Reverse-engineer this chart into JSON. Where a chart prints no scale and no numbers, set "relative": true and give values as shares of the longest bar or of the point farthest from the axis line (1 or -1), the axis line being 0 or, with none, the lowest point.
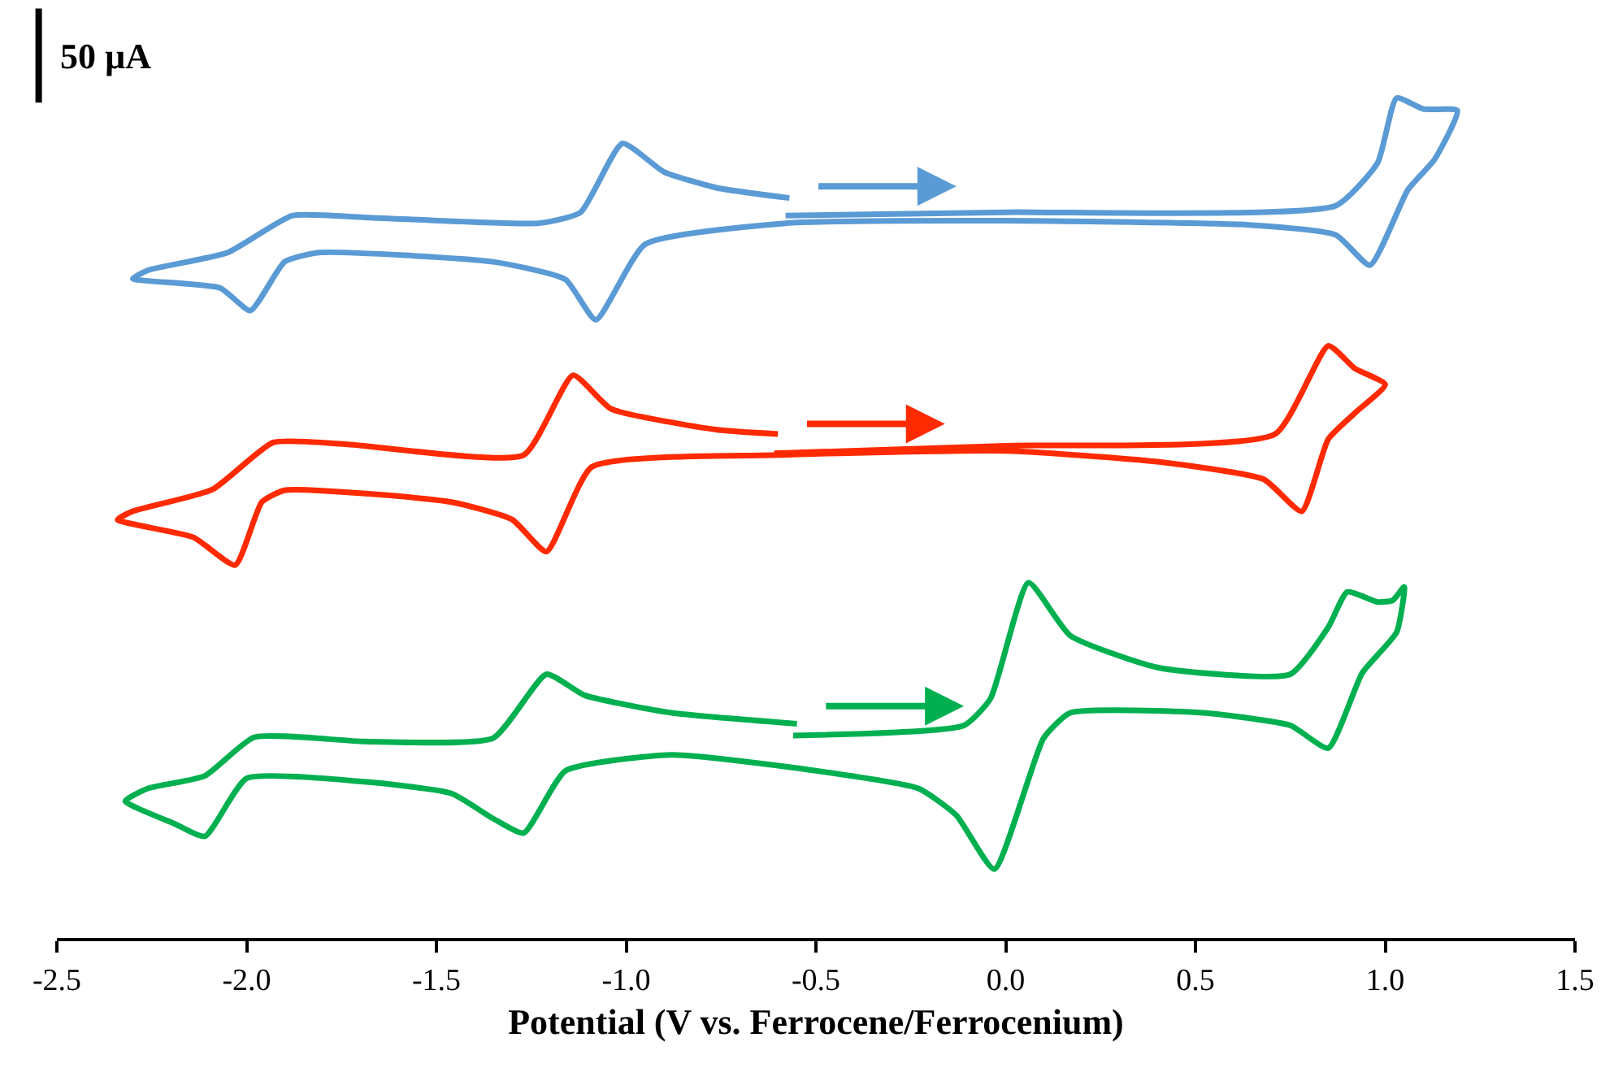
{
  "chart_data": {
    "type": "line",
    "relative": true,
    "xlabel": "Potential (V vs. Ferrocene/Ferrocenium)",
    "annotations": [
      "50 µA"
    ],
    "xlim": [
      -2.5,
      1.5
    ],
    "xticks": [
      -2.5,
      {
        "value": -2,
        "label": "-2.0"
      },
      -1.5,
      {
        "value": -1,
        "label": "-1.0"
      },
      -0.5,
      {
        "value": 0,
        "label": "0.0"
      },
      0.5,
      {
        "value": 1,
        "label": "1.0"
      },
      1.5
    ],
    "marker": "none",
    "line_style": "solid",
    "series": [
      {
        "color": "#5b9bd5",
        "x": [
          -0.58,
          0.0,
          0.87,
          0.98,
          1.03,
          1.1,
          1.19,
          1.13,
          1.06,
          0.96,
          0.87,
          0.64,
          0.0,
          -0.58,
          -0.95,
          -1.08,
          -1.16,
          -1.35,
          -1.81,
          -1.9,
          -1.99,
          -2.07,
          -2.3,
          -2.26,
          -2.05,
          -1.88,
          -1.69,
          -1.23,
          -1.12,
          -1.01,
          -0.9,
          -0.76,
          -0.57
        ],
        "values": [
          0.86,
          0.864,
          0.872,
          0.923,
          1.0,
          0.987,
          0.985,
          0.927,
          0.891,
          0.801,
          0.837,
          0.849,
          0.854,
          0.851,
          0.826,
          0.736,
          0.784,
          0.805,
          0.816,
          0.805,
          0.747,
          0.774,
          0.785,
          0.795,
          0.816,
          0.86,
          0.858,
          0.851,
          0.864,
          0.946,
          0.912,
          0.893,
          0.881
        ]
      },
      {
        "color": "#ff2a00",
        "x": [
          -0.61,
          0.0,
          0.71,
          0.85,
          0.92,
          1.0,
          0.92,
          0.85,
          0.78,
          0.68,
          0.4,
          0.0,
          -0.6,
          -1.09,
          -1.21,
          -1.3,
          -1.46,
          -1.9,
          -1.96,
          -2.03,
          -2.14,
          -2.34,
          -2.3,
          -2.09,
          -1.93,
          -1.74,
          -1.27,
          -1.14,
          -1.04,
          -0.76,
          -0.6
        ],
        "values": [
          0.577,
          0.586,
          0.6,
          0.705,
          0.678,
          0.659,
          0.625,
          0.594,
          0.508,
          0.546,
          0.567,
          0.58,
          0.575,
          0.561,
          0.46,
          0.498,
          0.519,
          0.533,
          0.519,
          0.444,
          0.477,
          0.498,
          0.508,
          0.534,
          0.59,
          0.588,
          0.575,
          0.67,
          0.63,
          0.605,
          0.6
        ]
      },
      {
        "color": "#00b050",
        "x": [
          -0.56,
          -0.11,
          -0.04,
          0.06,
          0.17,
          0.4,
          0.75,
          0.85,
          0.9,
          0.98,
          1.02,
          1.05,
          1.03,
          0.94,
          0.85,
          0.75,
          0.52,
          0.17,
          0.1,
          -0.03,
          -0.13,
          -0.23,
          -0.53,
          -0.88,
          -1.16,
          -1.27,
          -1.35,
          -1.46,
          -1.69,
          -2.0,
          -2.11,
          -2.19,
          -2.32,
          -2.26,
          -2.11,
          -1.98,
          -1.69,
          -1.35,
          -1.21,
          -1.11,
          -0.88,
          -0.55
        ],
        "values": [
          0.241,
          0.253,
          0.285,
          0.423,
          0.36,
          0.322,
          0.314,
          0.37,
          0.412,
          0.4,
          0.402,
          0.418,
          0.364,
          0.316,
          0.226,
          0.253,
          0.268,
          0.268,
          0.238,
          0.082,
          0.146,
          0.178,
          0.201,
          0.218,
          0.199,
          0.125,
          0.142,
          0.172,
          0.186,
          0.19,
          0.121,
          0.136,
          0.163,
          0.178,
          0.193,
          0.239,
          0.234,
          0.238,
          0.314,
          0.289,
          0.268,
          0.255
        ]
      }
    ]
  }
}
